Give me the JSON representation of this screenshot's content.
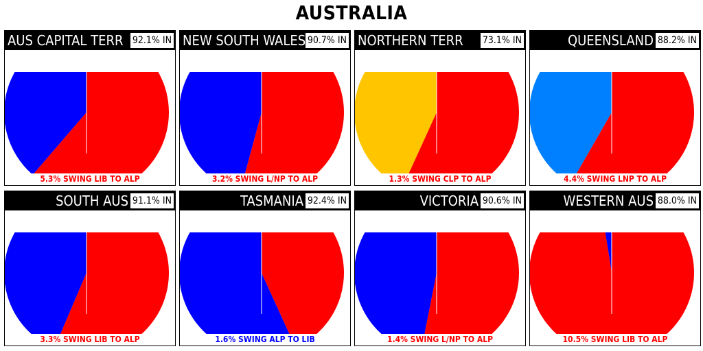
{
  "title": "AUSTRALIA",
  "colors": {
    "alp": "#ff0000",
    "lib": "#0000ff",
    "lnp": "#0080ff",
    "clp": "#ffc600",
    "swing_to_alp": "#ff0000",
    "swing_to_lib": "#0000ff"
  },
  "chart_data": [
    {
      "type": "pie",
      "name": "AUS CAPITAL TERR",
      "counted": "92.1% IN",
      "variant": "semicircle",
      "name_align": "left",
      "series": [
        {
          "name": "LIB",
          "color": "#0000ff",
          "value": 38.7
        },
        {
          "name": "ALP",
          "color": "#ff0000",
          "value": 61.3
        }
      ],
      "swing_text": "5.3% SWING LIB TO ALP",
      "swing_color": "#ff0000"
    },
    {
      "type": "pie",
      "name": "NEW SOUTH WALES",
      "counted": "90.7% IN",
      "variant": "semicircle",
      "name_align": "left",
      "series": [
        {
          "name": "L/NP",
          "color": "#0000ff",
          "value": 45.8
        },
        {
          "name": "ALP",
          "color": "#ff0000",
          "value": 54.2
        }
      ],
      "swing_text": "3.2% SWING L/NP TO ALP",
      "swing_color": "#ff0000"
    },
    {
      "type": "pie",
      "name": "NORTHERN TERR",
      "counted": "73.1% IN",
      "variant": "semicircle",
      "name_align": "left",
      "series": [
        {
          "name": "CLP",
          "color": "#ffc600",
          "value": 43.2
        },
        {
          "name": "ALP",
          "color": "#ff0000",
          "value": 56.8
        }
      ],
      "swing_text": "1.3% SWING CLP TO ALP",
      "swing_color": "#ff0000"
    },
    {
      "type": "pie",
      "name": "QUEENSLAND",
      "counted": "88.2% IN",
      "variant": "semicircle",
      "name_align": "right",
      "series": [
        {
          "name": "LNP",
          "color": "#0080ff",
          "value": 41.7
        },
        {
          "name": "ALP",
          "color": "#ff0000",
          "value": 58.3
        }
      ],
      "swing_text": "4.4% SWING LNP TO ALP",
      "swing_color": "#ff0000"
    },
    {
      "type": "pie",
      "name": "SOUTH AUS",
      "counted": "91.1% IN",
      "variant": "semicircle",
      "name_align": "right",
      "series": [
        {
          "name": "LIB",
          "color": "#0000ff",
          "value": 43.6
        },
        {
          "name": "ALP",
          "color": "#ff0000",
          "value": 56.4
        }
      ],
      "swing_text": "3.3% SWING LIB TO ALP",
      "swing_color": "#ff0000"
    },
    {
      "type": "pie",
      "name": "TASMANIA",
      "counted": "92.4% IN",
      "variant": "semicircle",
      "name_align": "right",
      "series": [
        {
          "name": "LIB",
          "color": "#0000ff",
          "value": 56.8
        },
        {
          "name": "ALP",
          "color": "#ff0000",
          "value": 43.2
        }
      ],
      "swing_text": "1.6% SWING ALP TO LIB",
      "swing_color": "#0000ff"
    },
    {
      "type": "pie",
      "name": "VICTORIA",
      "counted": "90.6% IN",
      "variant": "semicircle",
      "name_align": "right",
      "series": [
        {
          "name": "L/NP",
          "color": "#0000ff",
          "value": 46.9
        },
        {
          "name": "ALP",
          "color": "#ff0000",
          "value": 53.1
        }
      ],
      "swing_text": "1.4% SWING L/NP TO ALP",
      "swing_color": "#ff0000"
    },
    {
      "type": "pie",
      "name": "WESTERN AUS",
      "counted": "88.0% IN",
      "variant": "semicircle",
      "name_align": "right",
      "series": [
        {
          "name": "LIB",
          "color": "#0000ff",
          "value": 2.5
        },
        {
          "name": "ALP",
          "color": "#ff0000",
          "value": 97.5
        }
      ],
      "swing_text": "10.5% SWING LIB TO ALP",
      "swing_color": "#ff0000"
    }
  ]
}
